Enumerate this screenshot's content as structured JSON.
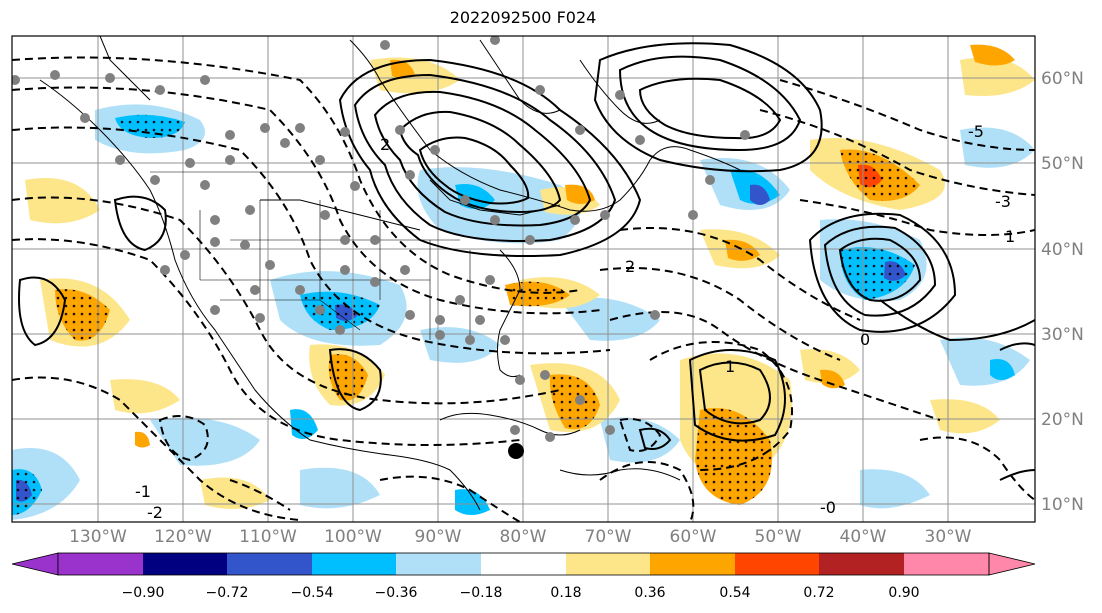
{
  "title": "2022092500 F024",
  "lat_labels": [
    "60°N",
    "50°N",
    "40°N",
    "30°N",
    "20°N",
    "10°N"
  ],
  "lon_labels": [
    "130°W",
    "120°W",
    "110°W",
    "100°W",
    "90°W",
    "80°W",
    "70°W",
    "60°W",
    "50°W",
    "40°W",
    "30°W"
  ],
  "contour_labels": [
    "-1",
    "-2",
    "-3",
    "-5",
    "-0",
    "0",
    "1",
    "2"
  ],
  "colorbar": {
    "tick_labels": [
      "−0.90",
      "−0.72",
      "−0.54",
      "−0.36",
      "−0.18",
      "0.18",
      "0.36",
      "0.54",
      "0.72",
      "0.90"
    ],
    "colors": [
      "#9933cc",
      "#000080",
      "#3355cc",
      "#00bfff",
      "#b0e0f8",
      "#ffffff",
      "#fde68a",
      "#ffa500",
      "#ff4500",
      "#b22222",
      "#ff88aa"
    ]
  },
  "shading_colors": {
    "neg_light": "#b0e0f8",
    "neg_mid": "#00bfff",
    "neg_strong": "#3355cc",
    "pos_light": "#fde68a",
    "pos_mid": "#ffa500",
    "pos_strong": "#ff4500"
  },
  "marker_color": "#808080",
  "current_marker_color": "#000000"
}
